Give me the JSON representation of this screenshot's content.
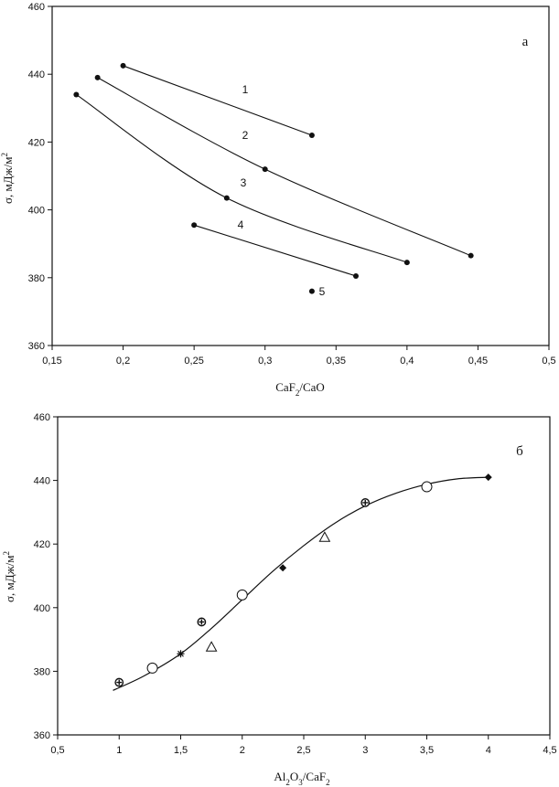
{
  "chart_data": [
    {
      "type": "line",
      "panel_label": "а",
      "xlabel": "CaF₂/CaO",
      "ylabel": "σ, мДж/м²",
      "xlim": [
        0.15,
        0.5
      ],
      "ylim": [
        360,
        460
      ],
      "xticks": [
        0.15,
        0.2,
        0.25,
        0.3,
        0.35,
        0.4,
        0.45,
        0.5
      ],
      "xtick_labels": [
        "0,15",
        "0,2",
        "0,25",
        "0,3",
        "0,35",
        "0,4",
        "0,45",
        "0,5"
      ],
      "yticks": [
        360,
        380,
        400,
        420,
        440,
        460
      ],
      "ytick_labels": [
        "360",
        "380",
        "400",
        "420",
        "440",
        "460"
      ],
      "grid": false,
      "series": [
        {
          "name": "1",
          "x": [
            0.2,
            0.333
          ],
          "y": [
            442.5,
            422
          ]
        },
        {
          "name": "2",
          "x": [
            0.182,
            0.3,
            0.445
          ],
          "y": [
            439,
            412,
            386.5
          ]
        },
        {
          "name": "3",
          "x": [
            0.167,
            0.273,
            0.4
          ],
          "y": [
            434,
            403.5,
            384.5
          ]
        },
        {
          "name": "4",
          "x": [
            0.25,
            0.364
          ],
          "y": [
            395.5,
            380.5
          ]
        },
        {
          "name": "5",
          "x": [
            0.333
          ],
          "y": [
            376
          ]
        }
      ]
    },
    {
      "type": "scatter",
      "panel_label": "б",
      "xlabel": "Al₂O₃/CaF₂",
      "ylabel": "σ, мДж/м²",
      "xlim": [
        0.5,
        4.5
      ],
      "ylim": [
        360,
        460
      ],
      "xticks": [
        0.5,
        1,
        1.5,
        2,
        2.5,
        3,
        3.5,
        4,
        4.5
      ],
      "xtick_labels": [
        "0,5",
        "1",
        "1,5",
        "2",
        "2,5",
        "3",
        "3,5",
        "4",
        "4,5"
      ],
      "yticks": [
        360,
        380,
        400,
        420,
        440,
        460
      ],
      "ytick_labels": [
        "360",
        "380",
        "400",
        "420",
        "440",
        "460"
      ],
      "grid": false,
      "points": [
        {
          "x": 1.0,
          "y": 376.5,
          "marker": "circle-cross"
        },
        {
          "x": 1.27,
          "y": 381,
          "marker": "open-circle"
        },
        {
          "x": 1.5,
          "y": 385.5,
          "marker": "asterisk"
        },
        {
          "x": 1.67,
          "y": 395.5,
          "marker": "circle-cross"
        },
        {
          "x": 1.75,
          "y": 387.5,
          "marker": "triangle"
        },
        {
          "x": 2.0,
          "y": 404,
          "marker": "open-circle"
        },
        {
          "x": 2.33,
          "y": 412.5,
          "marker": "diamond"
        },
        {
          "x": 2.67,
          "y": 422,
          "marker": "triangle"
        },
        {
          "x": 3.0,
          "y": 433,
          "marker": "circle-cross"
        },
        {
          "x": 3.5,
          "y": 438,
          "marker": "open-circle"
        },
        {
          "x": 4.0,
          "y": 441,
          "marker": "diamond"
        }
      ],
      "fit_curve": {
        "x": [
          0.95,
          1.2,
          1.5,
          1.75,
          2.0,
          2.25,
          2.5,
          2.75,
          3.0,
          3.25,
          3.5,
          3.75,
          4.0
        ],
        "y": [
          374,
          378.5,
          385.5,
          393.5,
          402.5,
          411.5,
          419.5,
          426.5,
          432,
          436,
          438.8,
          440.5,
          441
        ]
      }
    }
  ]
}
